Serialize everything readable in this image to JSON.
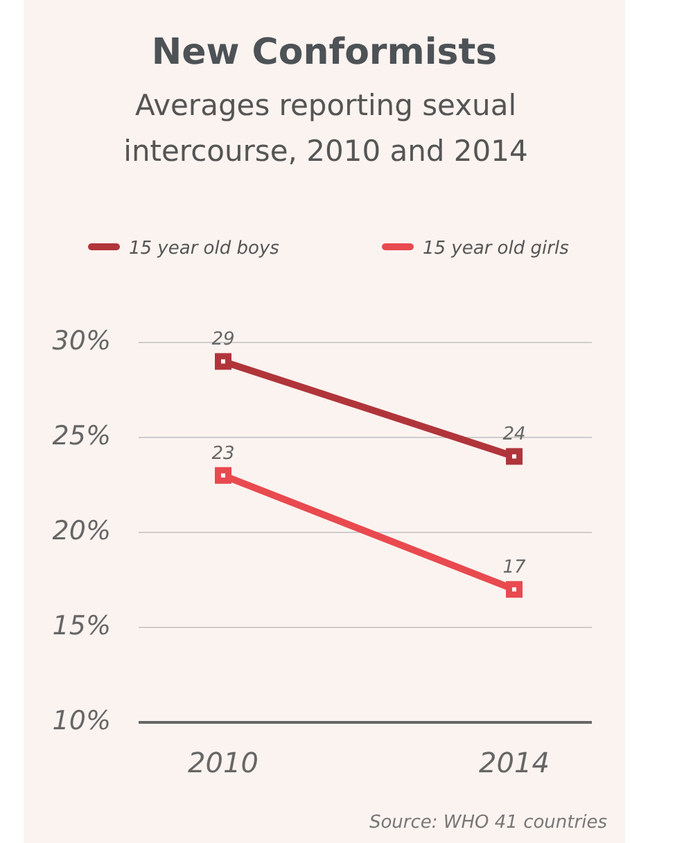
{
  "chart_data": {
    "type": "line",
    "title": "New Conformists",
    "subtitle": "Averages reporting sexual intercourse, 2010 and 2014",
    "categories": [
      "2010",
      "2014"
    ],
    "series": [
      {
        "name": "15 year old boys",
        "color": "#b0353a",
        "values": [
          29,
          24
        ]
      },
      {
        "name": "15 year old girls",
        "color": "#e84a4f",
        "values": [
          23,
          17
        ]
      }
    ],
    "ylim": [
      10,
      30
    ],
    "yticks": [
      {
        "value": 10,
        "label": "10%"
      },
      {
        "value": 15,
        "label": "15%"
      },
      {
        "value": 20,
        "label": "20%"
      },
      {
        "value": 25,
        "label": "25%"
      },
      {
        "value": 30,
        "label": "30%"
      }
    ],
    "grid": "y",
    "legend": "top left",
    "marker": "square",
    "line_style": "solid",
    "data_labels": true,
    "annotations": [
      "Source: WHO 41 countries"
    ]
  }
}
